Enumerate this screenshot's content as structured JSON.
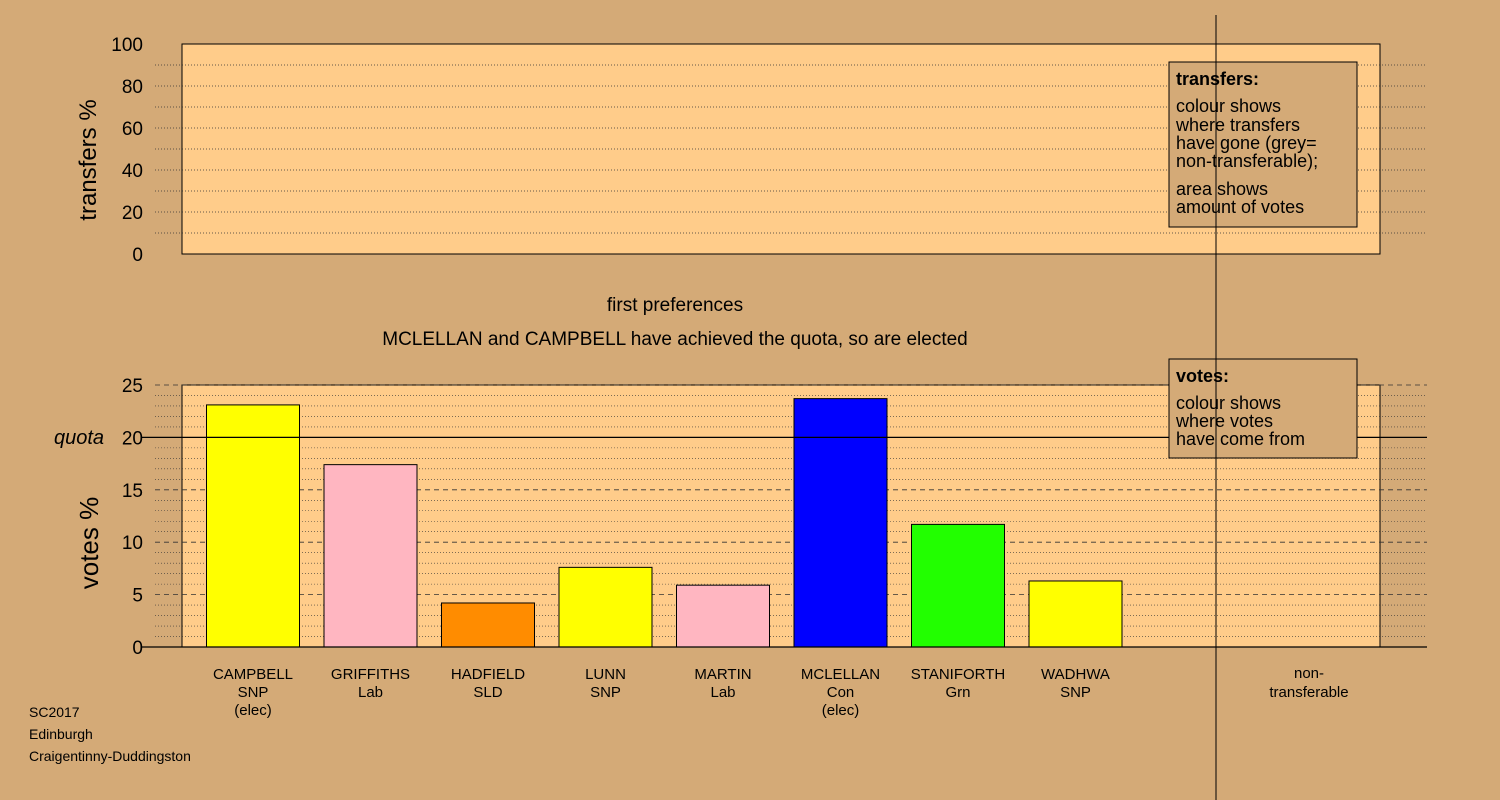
{
  "chart_data": {
    "type": "bar",
    "top_panel": {
      "ylabel": "transfers %",
      "ylim": [
        0,
        100
      ],
      "ticks": [
        "0",
        "20",
        "40",
        "60",
        "80",
        "100"
      ],
      "tick_values": [
        0,
        20,
        40,
        60,
        80,
        100
      ],
      "legend_title": "transfers:",
      "legend_lines_a": [
        "colour shows",
        "where transfers",
        "have gone (grey=",
        "non-transferable);"
      ],
      "legend_lines_b": [
        "area shows",
        "amount of votes"
      ],
      "legend_placement": "top-right"
    },
    "subtitle": "first preferences",
    "headline": "MCLELLAN and CAMPBELL have achieved the quota, so are elected",
    "bottom_panel": {
      "ylabel": "votes %",
      "ylim": [
        0,
        25
      ],
      "ticks": [
        "0",
        "5",
        "10",
        "15",
        "20",
        "25"
      ],
      "tick_values": [
        0,
        5,
        10,
        15,
        20,
        25
      ],
      "quota_label": "quota",
      "quota_value": 20,
      "legend_title": "votes:",
      "legend_lines": [
        "colour shows",
        "where votes",
        "have come from"
      ],
      "legend_placement": "top-right"
    },
    "candidates": [
      {
        "name": "CAMPBELL",
        "party": "SNP",
        "note": "(elec)",
        "value": 23.1,
        "color": "#ffff00"
      },
      {
        "name": "GRIFFITHS",
        "party": "Lab",
        "note": "",
        "value": 17.4,
        "color": "#ffb6c1"
      },
      {
        "name": "HADFIELD",
        "party": "SLD",
        "note": "",
        "value": 4.2,
        "color": "#ff8c00"
      },
      {
        "name": "LUNN",
        "party": "SNP",
        "note": "",
        "value": 7.6,
        "color": "#ffff00"
      },
      {
        "name": "MARTIN",
        "party": "Lab",
        "note": "",
        "value": 5.9,
        "color": "#ffb6c1"
      },
      {
        "name": "MCLELLAN",
        "party": "Con",
        "note": "(elec)",
        "value": 23.7,
        "color": "#0000ff"
      },
      {
        "name": "STANIFORTH",
        "party": "Grn",
        "note": "",
        "value": 11.7,
        "color": "#22ff00"
      },
      {
        "name": "WADHWA",
        "party": "SNP",
        "note": "",
        "value": 6.3,
        "color": "#ffff00"
      }
    ],
    "nontransferable_label": [
      "non-",
      "transferable"
    ]
  },
  "footer": {
    "election": "SC2017",
    "council": "Edinburgh",
    "ward": "Craigentinny-Duddingston"
  }
}
